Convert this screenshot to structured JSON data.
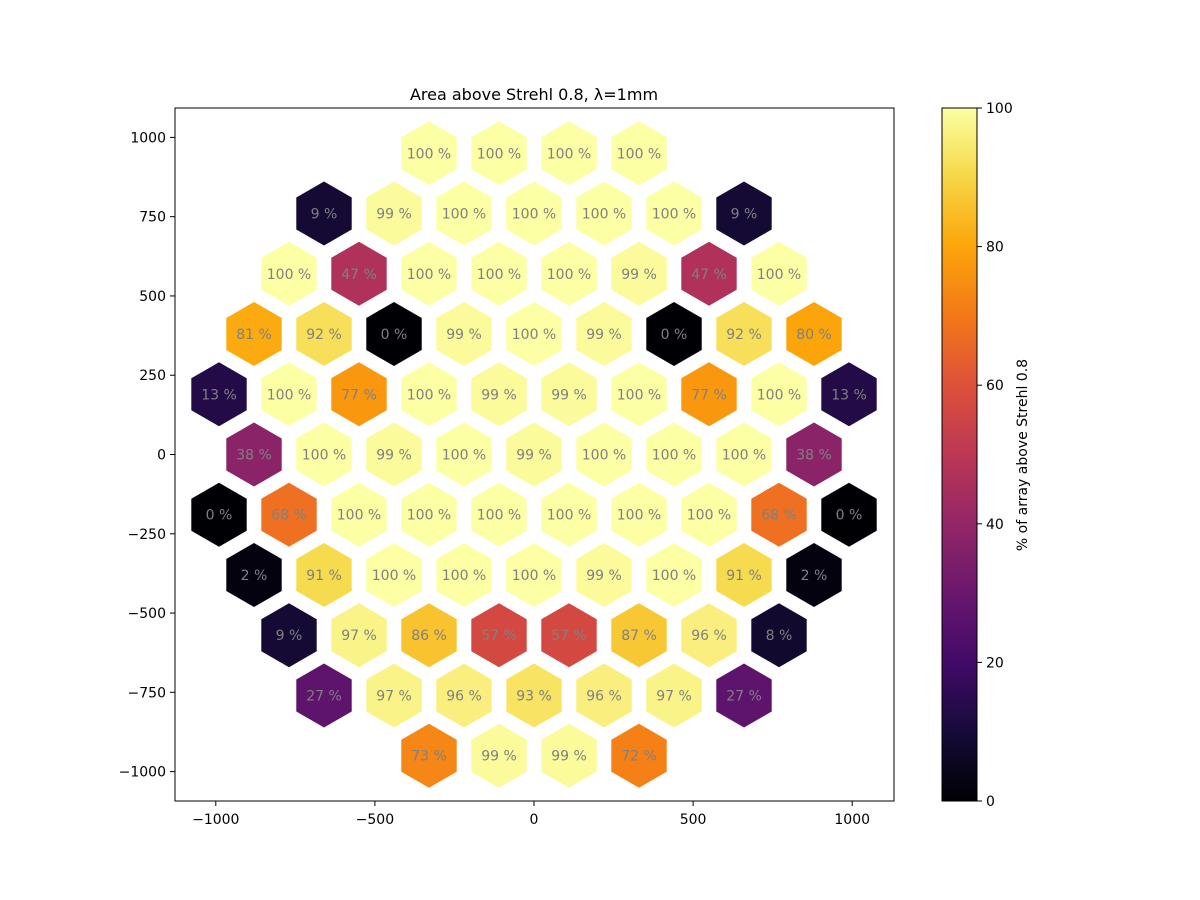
{
  "chart_data": {
    "type": "heatmap",
    "title": "Area above Strehl 0.8, λ=1mm",
    "x_ticks": [
      "−1000",
      "−500",
      "0",
      "500",
      "1000"
    ],
    "y_ticks": [
      "1000",
      "750",
      "500",
      "250",
      "0",
      "−250",
      "−500",
      "−750",
      "−1000"
    ],
    "xlim": [
      -1130,
      1130
    ],
    "ylim": [
      -1085,
      1085
    ],
    "colorbar": {
      "label": "% of array above Strehl 0.8",
      "ticks": [
        "0",
        "20",
        "40",
        "60",
        "80",
        "100"
      ],
      "range": [
        0,
        100
      ],
      "colormap": "inferno"
    },
    "hex_rows": [
      {
        "y": 950,
        "x": [
          -330,
          -110,
          110,
          330
        ],
        "values": [
          100,
          100,
          100,
          100
        ]
      },
      {
        "y": 760,
        "x": [
          -660,
          -440,
          -220,
          0,
          220,
          440,
          660
        ],
        "values": [
          9,
          99,
          100,
          100,
          100,
          100,
          9
        ]
      },
      {
        "y": 570,
        "x": [
          -770,
          -550,
          -330,
          -110,
          110,
          330,
          550,
          770
        ],
        "values": [
          100,
          47,
          100,
          100,
          100,
          99,
          47,
          100
        ]
      },
      {
        "y": 380,
        "x": [
          -880,
          -660,
          -440,
          -220,
          0,
          220,
          440,
          660,
          880
        ],
        "values": [
          81,
          92,
          0,
          99,
          100,
          99,
          0,
          92,
          80
        ]
      },
      {
        "y": 190,
        "x": [
          -990,
          -770,
          -550,
          -330,
          -110,
          110,
          330,
          550,
          770,
          990
        ],
        "values": [
          13,
          100,
          77,
          100,
          99,
          99,
          100,
          77,
          100,
          13
        ]
      },
      {
        "y": 0,
        "x": [
          -880,
          -660,
          -440,
          -220,
          0,
          220,
          440,
          660,
          880
        ],
        "values": [
          38,
          100,
          99,
          100,
          99,
          100,
          100,
          100,
          38
        ]
      },
      {
        "y": -190,
        "x": [
          -990,
          -770,
          -550,
          -330,
          -110,
          110,
          330,
          550,
          770,
          990
        ],
        "values": [
          0,
          68,
          100,
          100,
          100,
          100,
          100,
          100,
          68,
          0
        ]
      },
      {
        "y": -380,
        "x": [
          -880,
          -660,
          -440,
          -220,
          0,
          220,
          440,
          660,
          880
        ],
        "values": [
          2,
          91,
          100,
          100,
          100,
          99,
          100,
          91,
          2
        ]
      },
      {
        "y": -570,
        "x": [
          -770,
          -550,
          -330,
          -110,
          110,
          330,
          550,
          770
        ],
        "values": [
          9,
          97,
          86,
          57,
          57,
          87,
          96,
          8
        ]
      },
      {
        "y": -760,
        "x": [
          -660,
          -440,
          -220,
          0,
          220,
          440,
          660
        ],
        "values": [
          27,
          97,
          96,
          93,
          96,
          97,
          27
        ]
      },
      {
        "y": -950,
        "x": [
          -330,
          -110,
          110,
          330
        ],
        "values": [
          73,
          99,
          99,
          72
        ]
      }
    ]
  }
}
